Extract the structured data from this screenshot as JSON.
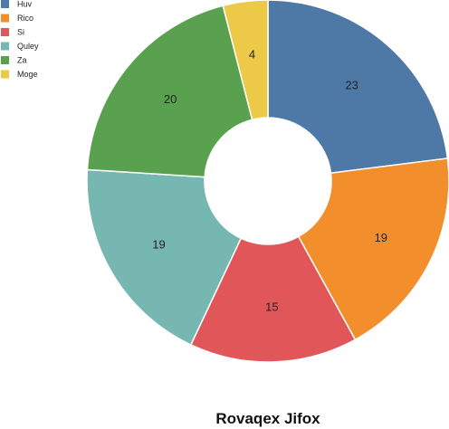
{
  "chart_data": {
    "type": "pie",
    "title": "Rovaqex Jifox",
    "donut": true,
    "legend_position": "top-left",
    "categories": [
      "Huv",
      "Rico",
      "Si",
      "Quley",
      "Za",
      "Moge"
    ],
    "values": [
      23,
      19,
      15,
      19,
      20,
      4
    ],
    "colors": [
      "#4e79a7",
      "#f28e2b",
      "#e15759",
      "#76b7b2",
      "#59a14f",
      "#edc948"
    ]
  }
}
